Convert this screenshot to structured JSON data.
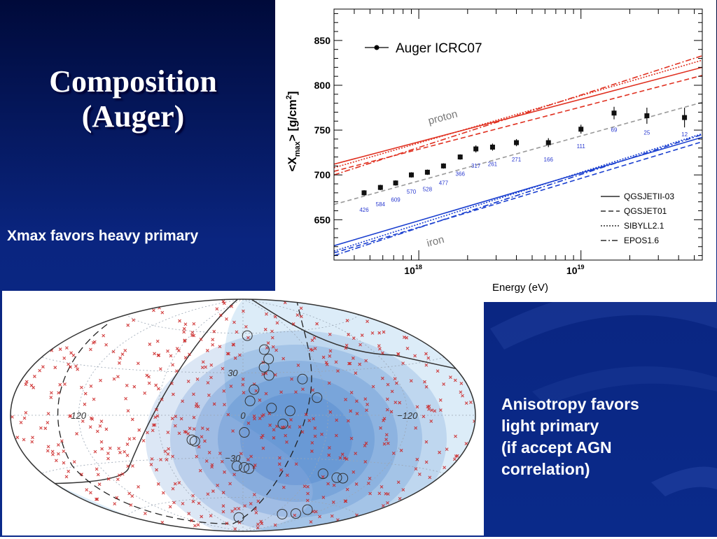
{
  "slide": {
    "title_line1": "Composition",
    "title_line2": "(Auger)",
    "note_xmax": "Xmax favors heavy primary",
    "note_aniso_1": "Anisotropy favors",
    "note_aniso_2": "light primary",
    "note_aniso_3": "(if accept AGN",
    "note_aniso_4": "correlation)"
  },
  "chart_data": [
    {
      "type": "scatter",
      "ylabel_main": "<X",
      "ylabel_sub": "max",
      "ylabel_rest": "> [g/cm",
      "ylabel_sup": "2",
      "ylabel_end": "]",
      "xlabel": "Energy (eV)",
      "x_scale": "log",
      "xlim": [
        3e+17,
        5.6e+19
      ],
      "ylim": [
        605,
        885
      ],
      "yticks": [
        650,
        700,
        750,
        800,
        850
      ],
      "xticks": [
        {
          "value": 1e+18,
          "base": "10",
          "exp": "18"
        },
        {
          "value": 1e+19,
          "base": "10",
          "exp": "19"
        }
      ],
      "legend_position": "top-left",
      "data_legend": "Auger ICRC07",
      "model_legend": [
        {
          "name": "QGSJETII-03",
          "style": "solid"
        },
        {
          "name": "QGSJET01",
          "style": "dashed"
        },
        {
          "name": "SIBYLL2.1",
          "style": "dotted"
        },
        {
          "name": "EPOS1.6",
          "style": "dashdot"
        }
      ],
      "annotations": {
        "proton": "proton",
        "iron": "iron"
      },
      "colors": {
        "proton": "#e03020",
        "iron": "#1a3fd0",
        "data": "#111111",
        "fit": "#999999",
        "counts": "#2a3ad0"
      },
      "points": [
        {
          "x": 4.6e+17,
          "y": 680,
          "err": 3,
          "n": "426"
        },
        {
          "x": 5.8e+17,
          "y": 686,
          "err": 3,
          "n": "584"
        },
        {
          "x": 7.2e+17,
          "y": 691,
          "err": 3,
          "n": "609"
        },
        {
          "x": 9e+17,
          "y": 700,
          "err": 3,
          "n": "570"
        },
        {
          "x": 1.13e+18,
          "y": 703,
          "err": 3,
          "n": "528"
        },
        {
          "x": 1.42e+18,
          "y": 710,
          "err": 3,
          "n": "477"
        },
        {
          "x": 1.8e+18,
          "y": 720,
          "err": 3,
          "n": "366"
        },
        {
          "x": 2.25e+18,
          "y": 729,
          "err": 4,
          "n": "317"
        },
        {
          "x": 2.85e+18,
          "y": 731,
          "err": 4,
          "n": "261"
        },
        {
          "x": 4e+18,
          "y": 736,
          "err": 4,
          "n": "271"
        },
        {
          "x": 6.3e+18,
          "y": 736,
          "err": 5,
          "n": "166"
        },
        {
          "x": 1e+19,
          "y": 751,
          "err": 5,
          "n": "111"
        },
        {
          "x": 1.6e+19,
          "y": 769,
          "err": 7,
          "n": "69"
        },
        {
          "x": 2.55e+19,
          "y": 766,
          "err": 9,
          "n": "25"
        },
        {
          "x": 4.35e+19,
          "y": 764,
          "err": 11,
          "n": "12"
        }
      ],
      "fit_line": [
        [
          3e+17,
          667
        ],
        [
          5.6e+19,
          781
        ]
      ],
      "proton_models": [
        {
          "style": "solid",
          "line": [
            [
              3e+17,
              712
            ],
            [
              5.6e+19,
              820
            ]
          ]
        },
        {
          "style": "dashed",
          "line": [
            [
              3e+17,
              704
            ],
            [
              5.6e+19,
              811
            ]
          ]
        },
        {
          "style": "dotted",
          "line": [
            [
              3e+17,
              708
            ],
            [
              5.6e+19,
              828
            ]
          ]
        },
        {
          "style": "dashdot",
          "line": [
            [
              3e+17,
              700
            ],
            [
              5.6e+19,
              833
            ]
          ]
        }
      ],
      "iron_models": [
        {
          "style": "solid",
          "line": [
            [
              3e+17,
              621
            ],
            [
              5.6e+19,
              742
            ]
          ]
        },
        {
          "style": "dashed",
          "line": [
            [
              3e+17,
              613
            ],
            [
              5.6e+19,
              737
            ]
          ]
        },
        {
          "style": "dotted",
          "line": [
            [
              3e+17,
              615
            ],
            [
              5.6e+19,
              746
            ]
          ]
        },
        {
          "style": "dashdot",
          "line": [
            [
              3e+17,
              610
            ],
            [
              5.6e+19,
              745
            ]
          ]
        }
      ]
    },
    {
      "type": "scatter",
      "projection": "hammer-aitoff",
      "grid": true,
      "lon_labels": [
        {
          "lon": 120,
          "text": "120"
        },
        {
          "lon": 0,
          "text": "0"
        },
        {
          "lon": -120,
          "text": "−120"
        }
      ],
      "lat_labels": [
        {
          "lat": 30,
          "lon": 8,
          "text": "30"
        },
        {
          "lat": -30,
          "lon": 8,
          "text": "−30"
        }
      ],
      "colors": {
        "agn": "#cc2222",
        "event": "#333333",
        "exposure": "#3c78c8",
        "band": "#dcecf8"
      },
      "events": [
        [
          -5,
          58
        ],
        [
          -20,
          47
        ],
        [
          -22,
          40
        ],
        [
          -17,
          34
        ],
        [
          -20,
          28
        ],
        [
          -8,
          18
        ],
        [
          -5,
          10
        ],
        [
          -20,
          5
        ],
        [
          -33,
          3
        ],
        [
          -53,
          12
        ],
        [
          -28,
          -6
        ],
        [
          -1,
          -12
        ],
        [
          35,
          -18
        ],
        [
          37,
          -17
        ],
        [
          5,
          -36
        ],
        [
          -5,
          -38
        ],
        [
          -1,
          -37
        ],
        [
          -70,
          -40
        ],
        [
          -85,
          -42
        ],
        [
          -91,
          -42
        ],
        [
          10,
          -77
        ],
        [
          -75,
          -72
        ],
        [
          -95,
          -70
        ],
        [
          -100,
          -66
        ],
        [
          -45,
          25
        ]
      ]
    }
  ]
}
